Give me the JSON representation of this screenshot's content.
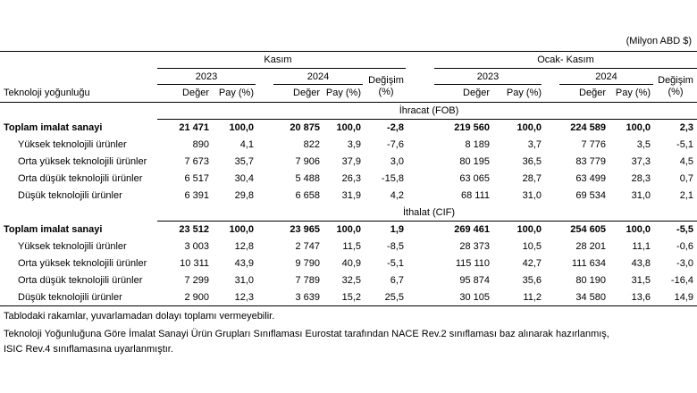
{
  "unit_label": "(Milyon ABD $)",
  "header": {
    "period1": "Kasım",
    "period2": "Ocak- Kasım",
    "year1": "2023",
    "year2": "2024",
    "col_value": "Değer",
    "col_share": "Pay (%)",
    "col_change_1": "Değişim",
    "col_change_2": "(%)",
    "row_label": "Teknoloji yoğunluğu"
  },
  "sections": [
    {
      "title": "İhracat (FOB)",
      "rows": [
        {
          "name": "Toplam imalat sanayi",
          "bold": true,
          "values": [
            "21 471",
            "100,0",
            "20 875",
            "100,0",
            "-2,8",
            "219 560",
            "100,0",
            "224 589",
            "100,0",
            "2,3"
          ]
        },
        {
          "name": "Yüksek teknolojili ürünler",
          "bold": false,
          "values": [
            "890",
            "4,1",
            "822",
            "3,9",
            "-7,6",
            "8 189",
            "3,7",
            "7 776",
            "3,5",
            "-5,1"
          ]
        },
        {
          "name": "Orta yüksek teknolojili ürünler",
          "bold": false,
          "values": [
            "7 673",
            "35,7",
            "7 906",
            "37,9",
            "3,0",
            "80 195",
            "36,5",
            "83 779",
            "37,3",
            "4,5"
          ]
        },
        {
          "name": "Orta düşük teknolojili ürünler",
          "bold": false,
          "values": [
            "6 517",
            "30,4",
            "5 488",
            "26,3",
            "-15,8",
            "63 065",
            "28,7",
            "63 499",
            "28,3",
            "0,7"
          ]
        },
        {
          "name": "Düşük teknolojili ürünler",
          "bold": false,
          "values": [
            "6 391",
            "29,8",
            "6 658",
            "31,9",
            "4,2",
            "68 111",
            "31,0",
            "69 534",
            "31,0",
            "2,1"
          ]
        }
      ]
    },
    {
      "title": "İthalat (CIF)",
      "rows": [
        {
          "name": "Toplam imalat sanayi",
          "bold": true,
          "values": [
            "23 512",
            "100,0",
            "23 965",
            "100,0",
            "1,9",
            "269 461",
            "100,0",
            "254 605",
            "100,0",
            "-5,5"
          ]
        },
        {
          "name": "Yüksek teknolojili ürünler",
          "bold": false,
          "values": [
            "3 003",
            "12,8",
            "2 747",
            "11,5",
            "-8,5",
            "28 373",
            "10,5",
            "28 201",
            "11,1",
            "-0,6"
          ]
        },
        {
          "name": "Orta yüksek teknolojili ürünler",
          "bold": false,
          "values": [
            "10 311",
            "43,9",
            "9 790",
            "40,9",
            "-5,1",
            "115 110",
            "42,7",
            "111 634",
            "43,8",
            "-3,0"
          ]
        },
        {
          "name": "Orta düşük teknolojili ürünler",
          "bold": false,
          "values": [
            "7 299",
            "31,0",
            "7 789",
            "32,5",
            "6,7",
            "95 874",
            "35,6",
            "80 190",
            "31,5",
            "-16,4"
          ]
        },
        {
          "name": "Düşük teknolojili ürünler",
          "bold": false,
          "values": [
            "2 900",
            "12,3",
            "3 639",
            "15,2",
            "25,5",
            "30 105",
            "11,2",
            "34 580",
            "13,6",
            "14,9"
          ]
        }
      ]
    }
  ],
  "footnotes": [
    "Tablodaki rakamlar, yuvarlamadan dolayı toplamı vermeyebilir.",
    "Teknoloji Yoğunluğuna Göre İmalat Sanayi Ürün Grupları Sınıflaması Eurostat tarafından NACE Rev.2 sınıflaması baz alınarak hazırlanmış,",
    "ISIC Rev.4 sınıflamasına uyarlanmıştır."
  ]
}
